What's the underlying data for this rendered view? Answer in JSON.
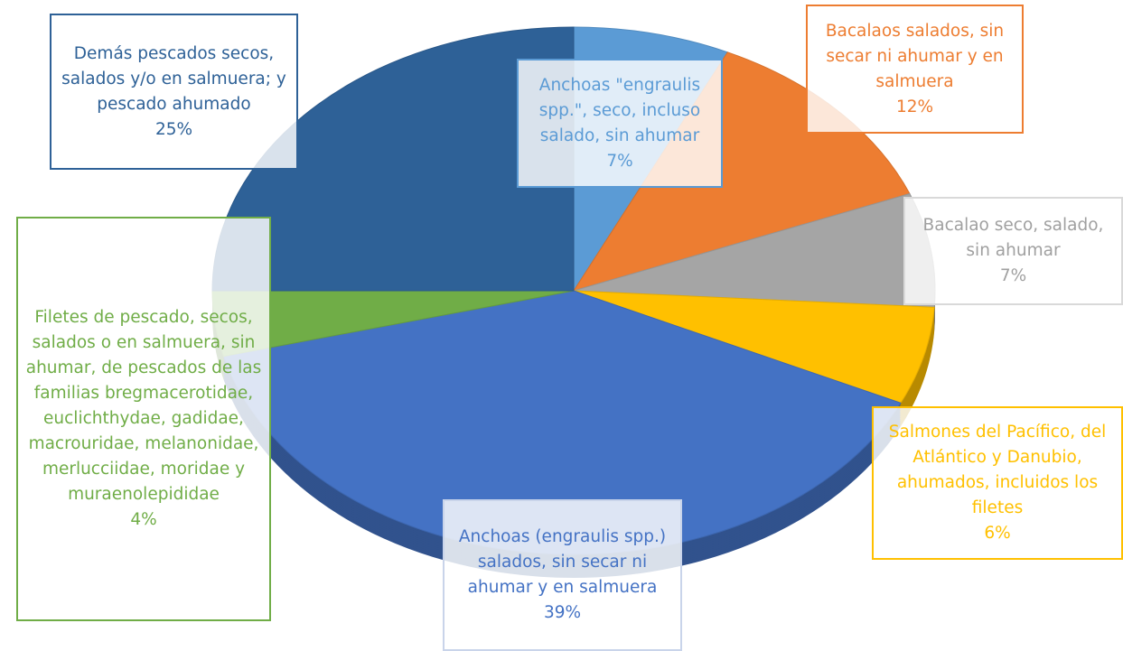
{
  "chart_data": {
    "type": "pie3d",
    "categories": [
      "Anchoas \"engraulis spp.\", seco, incluso salado, sin ahumar",
      "Bacalaos salados, sin secar ni ahumar y en salmuera",
      "Bacalao seco, salado, sin ahumar",
      "Salmones del Pacífico, del Atlántico y Danubio, ahumados, incluidos los filetes",
      "Anchoas (engraulis spp.) salados, sin secar ni ahumar y en salmuera",
      "Filetes de pescado, secos, salados o en salmuera, sin ahumar, de pescados de las familias bregmacerotidae, euclichthydae, gadidae, macrouridae, melanonidae, merlucciidae, moridae y muraenolepididae",
      "Demás pescados secos, salados y/o en salmuera; y pescado ahumado"
    ],
    "values": [
      7,
      12,
      7,
      6,
      39,
      4,
      25
    ],
    "value_labels": [
      "7%",
      "12%",
      "7%",
      "6%",
      "39%",
      "4%",
      "25%"
    ],
    "colors": [
      "#5b9bd5",
      "#ed7d31",
      "#a5a5a5",
      "#ffc000",
      "#4472c4",
      "#70ad47",
      "#2e6197"
    ]
  }
}
